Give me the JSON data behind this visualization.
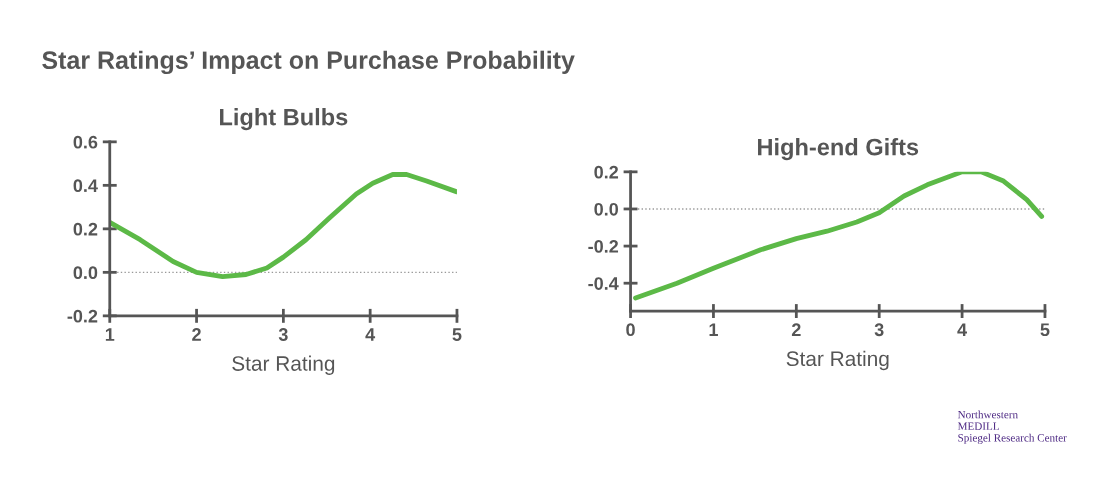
{
  "chart_data": [
    {
      "type": "line",
      "title": "Light Bulbs",
      "xlabel": "Star Rating",
      "annotations": [
        "Star Ratings’ Impact on Purchase Probability"
      ],
      "x": [
        1.0,
        1.35,
        1.73,
        2.0,
        2.3,
        2.57,
        2.81,
        3.0,
        3.26,
        3.53,
        3.84,
        4.03,
        4.26,
        4.42,
        4.65,
        5.0
      ],
      "series": [
        {
          "color": "#5cb947",
          "values": [
            0.23,
            0.15,
            0.05,
            0.0,
            -0.02,
            -0.01,
            0.02,
            0.07,
            0.15,
            0.25,
            0.36,
            0.41,
            0.45,
            0.45,
            0.42,
            0.37
          ]
        }
      ],
      "xlim": [
        1,
        5
      ],
      "xticks": [
        1,
        2,
        3,
        4,
        5
      ],
      "ylim": [
        -0.2,
        0.6
      ],
      "yticks": [
        {
          "value": -0.2,
          "label": "-0.2"
        },
        {
          "value": 0.0,
          "label": "0.0"
        },
        {
          "value": 0.2,
          "label": "0.2"
        },
        {
          "value": 0.4,
          "label": "0.4"
        },
        {
          "value": 0.6,
          "label": "0.6"
        }
      ],
      "ref_lines": [
        {
          "axis": "y",
          "value": 0,
          "color": "#999999",
          "line_style": "dotted"
        }
      ],
      "grid": false,
      "marker": "none",
      "line_style": "solid"
    },
    {
      "type": "line",
      "title": "High-end Gifts",
      "xlabel": "Star Rating",
      "annotations": [
        "Northwestern\nMEDILL\nSpiegel Research Center"
      ],
      "x": [
        0.06,
        0.56,
        1.0,
        1.57,
        2.0,
        2.37,
        2.73,
        3.0,
        3.3,
        3.58,
        4.0,
        4.23,
        4.5,
        4.78,
        4.96
      ],
      "series": [
        {
          "color": "#5cb947",
          "values": [
            -0.48,
            -0.4,
            -0.32,
            -0.22,
            -0.16,
            -0.12,
            -0.07,
            -0.02,
            0.07,
            0.13,
            0.2,
            0.2,
            0.15,
            0.05,
            -0.04
          ]
        }
      ],
      "xlim": [
        0,
        5
      ],
      "xticks": [
        0,
        1,
        2,
        3,
        4,
        5
      ],
      "ylim": [
        -0.55,
        0.2
      ],
      "yticks": [
        {
          "value": 0.2,
          "label": "0.2"
        },
        {
          "value": 0.0,
          "label": "0.0"
        },
        {
          "value": -0.2,
          "label": "-0.2"
        },
        {
          "value": -0.4,
          "label": "-0.4"
        }
      ],
      "ref_lines": [
        {
          "axis": "y",
          "value": 0,
          "color": "#999999",
          "line_style": "dotted"
        }
      ],
      "grid": false,
      "marker": "none",
      "line_style": "solid"
    }
  ]
}
